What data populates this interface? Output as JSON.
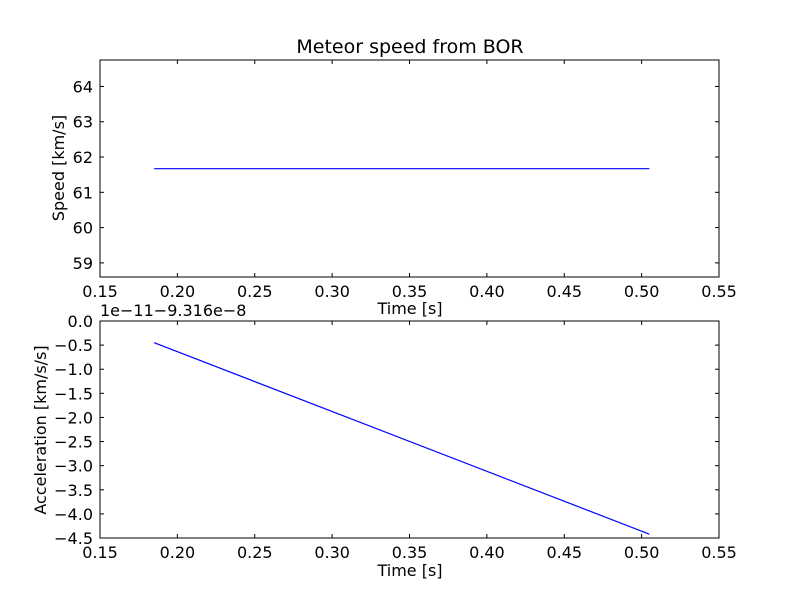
{
  "chart_data": [
    {
      "type": "line",
      "title": "Meteor speed from  BOR",
      "xlabel": "Time [s]",
      "ylabel": "Speed [km/s]",
      "xlim": [
        0.15,
        0.55
      ],
      "ylim": [
        58.6,
        64.75
      ],
      "x_ticks": [
        0.15,
        0.2,
        0.25,
        0.3,
        0.35,
        0.4,
        0.45,
        0.5,
        0.55
      ],
      "x_tick_labels": [
        "0.15",
        "0.20",
        "0.25",
        "0.30",
        "0.35",
        "0.40",
        "0.45",
        "0.50",
        "0.55"
      ],
      "y_ticks": [
        59,
        60,
        61,
        62,
        63,
        64
      ],
      "y_tick_labels": [
        "59",
        "60",
        "61",
        "62",
        "63",
        "64"
      ],
      "grid": false,
      "series": [
        {
          "color": "#0000ff",
          "x": [
            0.185,
            0.505
          ],
          "y": [
            61.67,
            61.67
          ]
        }
      ]
    },
    {
      "type": "line",
      "title": "",
      "xlabel": "Time [s]",
      "ylabel": "Acceleration [km/s/s]",
      "offset_text": "1e−11−9.316e−8",
      "xlim": [
        0.15,
        0.55
      ],
      "ylim": [
        -4.5,
        0.0
      ],
      "x_ticks": [
        0.15,
        0.2,
        0.25,
        0.3,
        0.35,
        0.4,
        0.45,
        0.5,
        0.55
      ],
      "x_tick_labels": [
        "0.15",
        "0.20",
        "0.25",
        "0.30",
        "0.35",
        "0.40",
        "0.45",
        "0.50",
        "0.55"
      ],
      "y_ticks": [
        0.0,
        -0.5,
        -1.0,
        -1.5,
        -2.0,
        -2.5,
        -3.0,
        -3.5,
        -4.0,
        -4.5
      ],
      "y_tick_labels": [
        "0.0",
        "−0.5",
        "−1.0",
        "−1.5",
        "−2.0",
        "−2.5",
        "−3.0",
        "−3.5",
        "−4.0",
        "−4.5"
      ],
      "grid": false,
      "series": [
        {
          "color": "#0000ff",
          "x": [
            0.185,
            0.505
          ],
          "y": [
            -0.45,
            -4.42
          ]
        }
      ]
    }
  ]
}
